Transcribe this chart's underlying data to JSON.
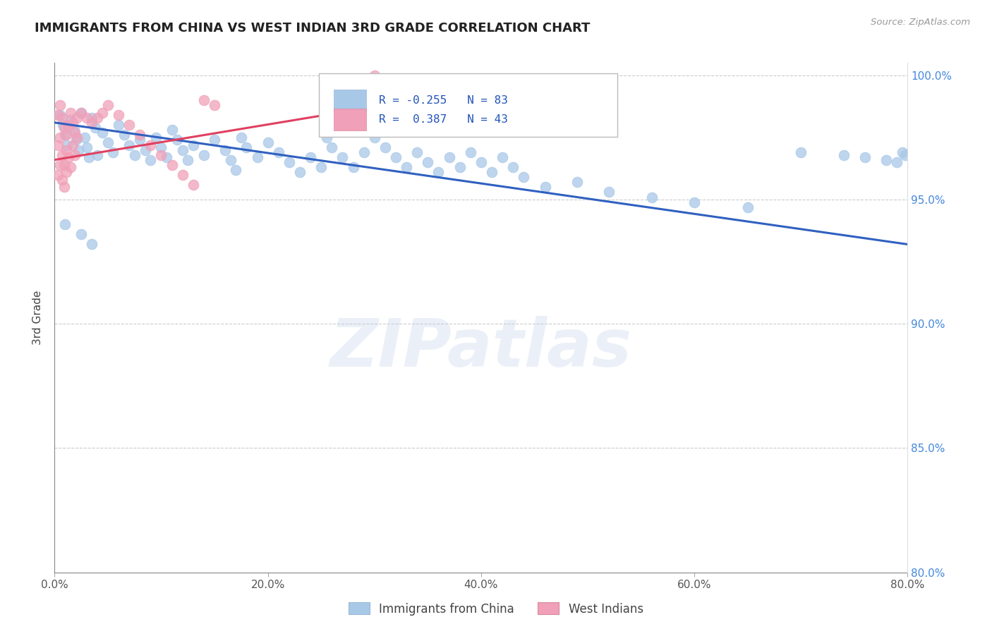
{
  "title": "IMMIGRANTS FROM CHINA VS WEST INDIAN 3RD GRADE CORRELATION CHART",
  "source": "Source: ZipAtlas.com",
  "ylabel": "3rd Grade",
  "xlim": [
    0.0,
    0.8
  ],
  "ylim": [
    0.8,
    1.005
  ],
  "xtick_vals": [
    0.0,
    0.2,
    0.4,
    0.6,
    0.8
  ],
  "xtick_labels": [
    "0.0%",
    "20.0%",
    "40.0%",
    "60.0%",
    "80.0%"
  ],
  "ytick_vals": [
    0.8,
    0.85,
    0.9,
    0.95,
    1.0
  ],
  "ytick_labels": [
    "80.0%",
    "85.0%",
    "90.0%",
    "95.0%",
    "100.0%"
  ],
  "legend_label_blue": "Immigrants from China",
  "legend_label_pink": "West Indians",
  "R_blue": -0.255,
  "N_blue": 83,
  "R_pink": 0.387,
  "N_pink": 43,
  "blue_color": "#a8c8e8",
  "pink_color": "#f0a0b8",
  "blue_line_color": "#3060c0",
  "pink_line_color": "#e04060",
  "watermark": "ZIPatlas",
  "blue_x": [
    0.005,
    0.008,
    0.01,
    0.012,
    0.015,
    0.018,
    0.02,
    0.022,
    0.025,
    0.028,
    0.03,
    0.032,
    0.035,
    0.038,
    0.04,
    0.045,
    0.05,
    0.055,
    0.06,
    0.065,
    0.07,
    0.075,
    0.08,
    0.085,
    0.09,
    0.095,
    0.1,
    0.105,
    0.11,
    0.115,
    0.12,
    0.125,
    0.13,
    0.14,
    0.15,
    0.16,
    0.165,
    0.17,
    0.175,
    0.18,
    0.19,
    0.2,
    0.21,
    0.22,
    0.23,
    0.24,
    0.25,
    0.255,
    0.26,
    0.27,
    0.28,
    0.29,
    0.3,
    0.31,
    0.32,
    0.33,
    0.34,
    0.35,
    0.36,
    0.37,
    0.38,
    0.39,
    0.4,
    0.41,
    0.42,
    0.43,
    0.44,
    0.46,
    0.49,
    0.52,
    0.56,
    0.6,
    0.65,
    0.7,
    0.74,
    0.76,
    0.78,
    0.79,
    0.795,
    0.798,
    0.01,
    0.025,
    0.035
  ],
  "blue_y": [
    0.984,
    0.98,
    0.976,
    0.972,
    0.982,
    0.978,
    0.974,
    0.97,
    0.985,
    0.975,
    0.971,
    0.967,
    0.983,
    0.979,
    0.968,
    0.977,
    0.973,
    0.969,
    0.98,
    0.976,
    0.972,
    0.968,
    0.974,
    0.97,
    0.966,
    0.975,
    0.971,
    0.967,
    0.978,
    0.974,
    0.97,
    0.966,
    0.972,
    0.968,
    0.974,
    0.97,
    0.966,
    0.962,
    0.975,
    0.971,
    0.967,
    0.973,
    0.969,
    0.965,
    0.961,
    0.967,
    0.963,
    0.975,
    0.971,
    0.967,
    0.963,
    0.969,
    0.975,
    0.971,
    0.967,
    0.963,
    0.969,
    0.965,
    0.961,
    0.967,
    0.963,
    0.969,
    0.965,
    0.961,
    0.967,
    0.963,
    0.959,
    0.955,
    0.957,
    0.953,
    0.951,
    0.949,
    0.947,
    0.969,
    0.968,
    0.967,
    0.966,
    0.965,
    0.969,
    0.968,
    0.94,
    0.936,
    0.932
  ],
  "pink_x": [
    0.003,
    0.005,
    0.007,
    0.009,
    0.011,
    0.013,
    0.015,
    0.017,
    0.019,
    0.021,
    0.003,
    0.005,
    0.007,
    0.009,
    0.011,
    0.013,
    0.015,
    0.017,
    0.019,
    0.021,
    0.003,
    0.005,
    0.007,
    0.009,
    0.011,
    0.025,
    0.03,
    0.035,
    0.04,
    0.045,
    0.05,
    0.06,
    0.07,
    0.08,
    0.09,
    0.1,
    0.11,
    0.12,
    0.13,
    0.14,
    0.15,
    0.3,
    0.32
  ],
  "pink_y": [
    0.984,
    0.988,
    0.983,
    0.979,
    0.976,
    0.98,
    0.985,
    0.981,
    0.977,
    0.983,
    0.972,
    0.975,
    0.968,
    0.964,
    0.97,
    0.967,
    0.963,
    0.972,
    0.968,
    0.975,
    0.96,
    0.964,
    0.958,
    0.955,
    0.961,
    0.985,
    0.983,
    0.981,
    0.983,
    0.985,
    0.988,
    0.984,
    0.98,
    0.976,
    0.972,
    0.968,
    0.964,
    0.96,
    0.956,
    0.99,
    0.988,
    1.0,
    0.998
  ],
  "blue_line_x": [
    0.0,
    0.8
  ],
  "blue_line_y": [
    0.981,
    0.932
  ],
  "pink_line_x": [
    0.0,
    0.45
  ],
  "pink_line_y": [
    0.966,
    0.998
  ]
}
